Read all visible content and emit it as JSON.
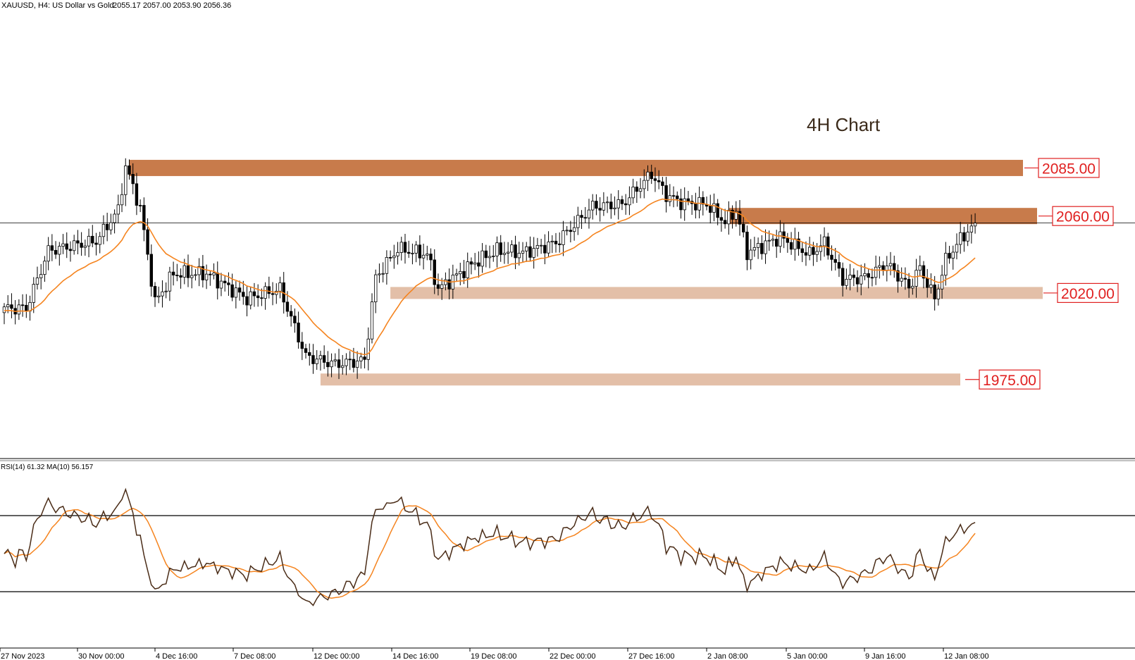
{
  "header": {
    "symbol": "XAUUSD, H4:  US Dollar vs Gold",
    "ohlc": "2055.17 2057.00 2053.90 2056.36"
  },
  "annotation": "4H Chart",
  "chart_data": [
    {
      "type": "candlestick",
      "title": "XAUUSD, H4:  US Dollar vs Gold",
      "xlabel": "",
      "ylabel": "",
      "ylim": [
        1935,
        2165
      ],
      "grid": false,
      "time_labels": [
        "27 Nov 2023",
        "30 Nov 00:00",
        "4 Dec 16:00",
        "7 Dec 08:00",
        "12 Dec 00:00",
        "14 Dec 16:00",
        "19 Dec 08:00",
        "22 Dec 00:00",
        "27 Dec 16:00",
        "2 Jan 08:00",
        "5 Jan 00:00",
        "9 Jan 16:00",
        "12 Jan 08:00"
      ],
      "close_keypoints": [
        [
          0,
          2012
        ],
        [
          6,
          2012
        ],
        [
          12,
          2042
        ],
        [
          25,
          2047
        ],
        [
          31,
          2063
        ],
        [
          33,
          2086
        ],
        [
          37,
          2064
        ],
        [
          41,
          2015
        ],
        [
          46,
          2030
        ],
        [
          55,
          2030
        ],
        [
          66,
          2017
        ],
        [
          75,
          2022
        ],
        [
          82,
          1987
        ],
        [
          90,
          1983
        ],
        [
          98,
          1985
        ],
        [
          101,
          2028
        ],
        [
          107,
          2043
        ],
        [
          115,
          2040
        ],
        [
          118,
          2022
        ],
        [
          128,
          2036
        ],
        [
          134,
          2042
        ],
        [
          141,
          2041
        ],
        [
          150,
          2046
        ],
        [
          160,
          2065
        ],
        [
          168,
          2066
        ],
        [
          176,
          2082
        ],
        [
          180,
          2071
        ],
        [
          184,
          2067
        ],
        [
          191,
          2066
        ],
        [
          196,
          2057
        ],
        [
          199,
          2063
        ],
        [
          202,
          2041
        ],
        [
          211,
          2049
        ],
        [
          219,
          2040
        ],
        [
          223,
          2046
        ],
        [
          228,
          2027
        ],
        [
          234,
          2028
        ],
        [
          240,
          2035
        ],
        [
          246,
          2023
        ],
        [
          249,
          2033
        ],
        [
          253,
          2017
        ],
        [
          256,
          2037
        ],
        [
          260,
          2048
        ],
        [
          264,
          2056
        ]
      ],
      "levels": [
        2085,
        2060,
        2020,
        1975
      ],
      "current_price": 2056.36,
      "moving_average": {
        "name": "",
        "color": "#f5841f"
      },
      "zones": [
        {
          "level": 2085,
          "color": "#c87b4b",
          "start_bar": 34
        },
        {
          "level": 2060,
          "color": "#c87b4b",
          "start_bar": 197
        },
        {
          "level": 2020,
          "color": "#e3bfa8",
          "start_bar": 105
        },
        {
          "level": 1975,
          "color": "#e3bfa8",
          "start_bar": 86
        }
      ],
      "colors": {
        "candle_up": "#ffffff",
        "candle_down": "#000000",
        "wick": "#000000",
        "level_text": "#e02020",
        "zone_dark": "#c87b4b",
        "zone_light": "#e3bfa8"
      }
    },
    {
      "type": "line",
      "title": "RSI(14) 61.32 MA(10) 56.157",
      "ylim": [
        0,
        100
      ],
      "levels": [
        70,
        30
      ],
      "series": [
        {
          "name": "RSI(14)",
          "color": "#4a2c17",
          "current": 61.32
        },
        {
          "name": "MA(10)",
          "color": "#f5841f",
          "current": 56.157
        }
      ]
    }
  ]
}
